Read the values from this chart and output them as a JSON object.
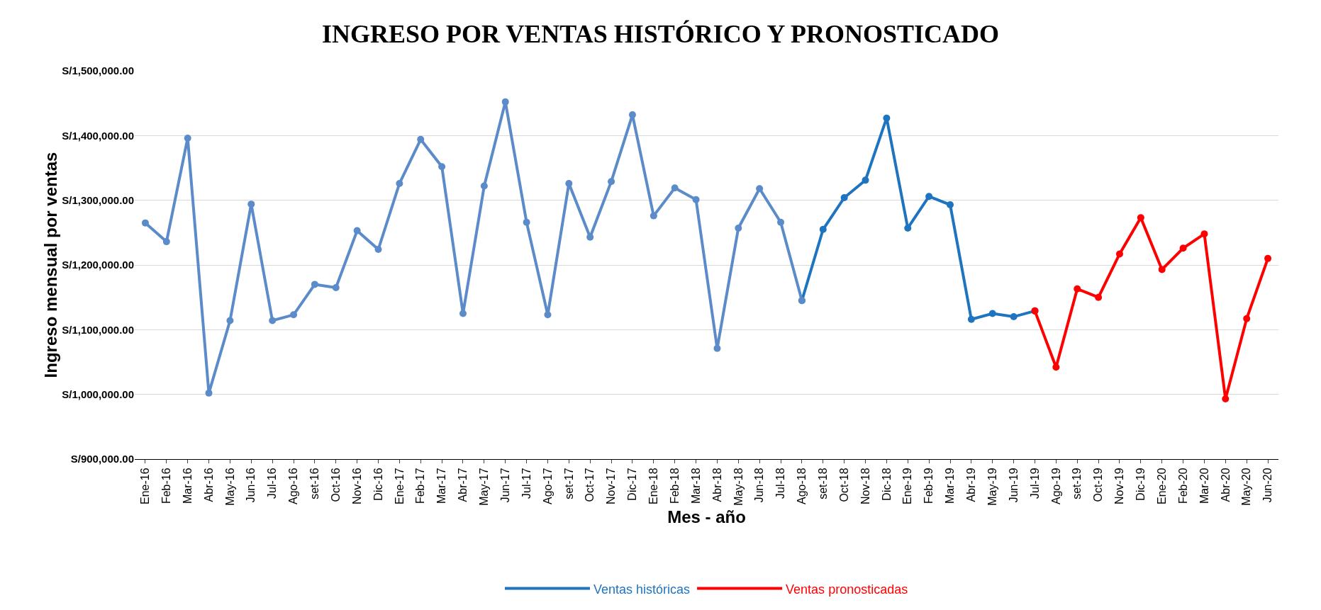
{
  "chart_data": {
    "type": "line",
    "title": "INGRESO POR VENTAS HISTÓRICO Y PRONOSTICADO",
    "xlabel": "Mes - año",
    "ylabel": "Ingreso mensual por ventas",
    "categories": [
      "Ene-16",
      "Feb-16",
      "Mar-16",
      "Abr-16",
      "May-16",
      "Jun-16",
      "Jul-16",
      "Ago-16",
      "set-16",
      "Oct-16",
      "Nov-16",
      "Dic-16",
      "Ene-17",
      "Feb-17",
      "Mar-17",
      "Abr-17",
      "May-17",
      "Jun-17",
      "Jul-17",
      "Ago-17",
      "set-17",
      "Oct-17",
      "Nov-17",
      "Dic-17",
      "Ene-18",
      "Feb-18",
      "Mar-18",
      "Abr-18",
      "May-18",
      "Jun-18",
      "Jul-18",
      "Ago-18",
      "set-18",
      "Oct-18",
      "Nov-18",
      "Dic-18",
      "Ene-19",
      "Feb-19",
      "Mar-19",
      "Abr-19",
      "May-19",
      "Jun-19",
      "Jul-19",
      "Ago-19",
      "set-19",
      "Oct-19",
      "Nov-19",
      "Dic-19",
      "Ene-20",
      "Feb-20",
      "Mar-20",
      "Abr-20",
      "May-20",
      "Jun-20"
    ],
    "series": [
      {
        "name": "Ventas históricas",
        "color": "#1f74c0",
        "values": [
          null,
          null,
          null,
          null,
          null,
          null,
          null,
          null,
          null,
          null,
          null,
          null,
          null,
          null,
          null,
          null,
          null,
          null,
          null,
          null,
          null,
          null,
          null,
          null,
          null,
          null,
          null,
          null,
          null,
          null,
          null,
          1145000,
          1255000,
          1304000,
          1331000,
          1427000,
          1257000,
          1306000,
          1293000,
          1116000,
          1125000,
          1120000,
          1129000,
          null,
          null,
          null,
          null,
          null,
          null,
          null,
          null,
          null,
          null,
          null
        ]
      },
      {
        "name": "Ventas pronosticadas",
        "color": "#ff0000",
        "values": [
          null,
          null,
          null,
          null,
          null,
          null,
          null,
          null,
          null,
          null,
          null,
          null,
          null,
          null,
          null,
          null,
          null,
          null,
          null,
          null,
          null,
          null,
          null,
          null,
          null,
          null,
          null,
          null,
          null,
          null,
          null,
          null,
          null,
          null,
          null,
          null,
          null,
          null,
          null,
          null,
          null,
          null,
          1129000,
          1042000,
          1163000,
          1150000,
          1217000,
          1273000,
          1193000,
          1226000,
          1248000,
          993000,
          1117000,
          1210000
        ]
      },
      {
        "color": "#5b8bc9",
        "values": [
          1265000,
          1236000,
          1396000,
          1002000,
          1114000,
          1294000,
          1114000,
          1123000,
          1170000,
          1165000,
          1253000,
          1224000,
          1326000,
          1394000,
          1352000,
          1125000,
          1322000,
          1452000,
          1266000,
          1123000,
          1326000,
          1243000,
          1329000,
          1432000,
          1276000,
          1319000,
          1301000,
          1071000,
          1257000,
          1318000,
          1266000,
          1145000,
          null,
          null,
          null,
          null,
          null,
          null,
          null,
          null,
          null,
          null,
          null,
          null,
          null,
          null,
          null,
          null,
          null,
          null,
          null,
          null,
          null,
          null
        ]
      }
    ],
    "ylim": [
      900000,
      1500000
    ],
    "yticks": [
      {
        "value": 900000,
        "label": "S/900,000.00"
      },
      {
        "value": 1000000,
        "label": "S/1,000,000.00"
      },
      {
        "value": 1100000,
        "label": "S/1,100,000.00"
      },
      {
        "value": 1200000,
        "label": "S/1,200,000.00"
      },
      {
        "value": 1300000,
        "label": "S/1,300,000.00"
      },
      {
        "value": 1400000,
        "label": "S/1,400,000.00"
      },
      {
        "value": 1500000,
        "label": "S/1,500,000.00"
      }
    ],
    "grid": "y",
    "legend": "bottom",
    "marker": "circle",
    "line_style": "solid"
  }
}
